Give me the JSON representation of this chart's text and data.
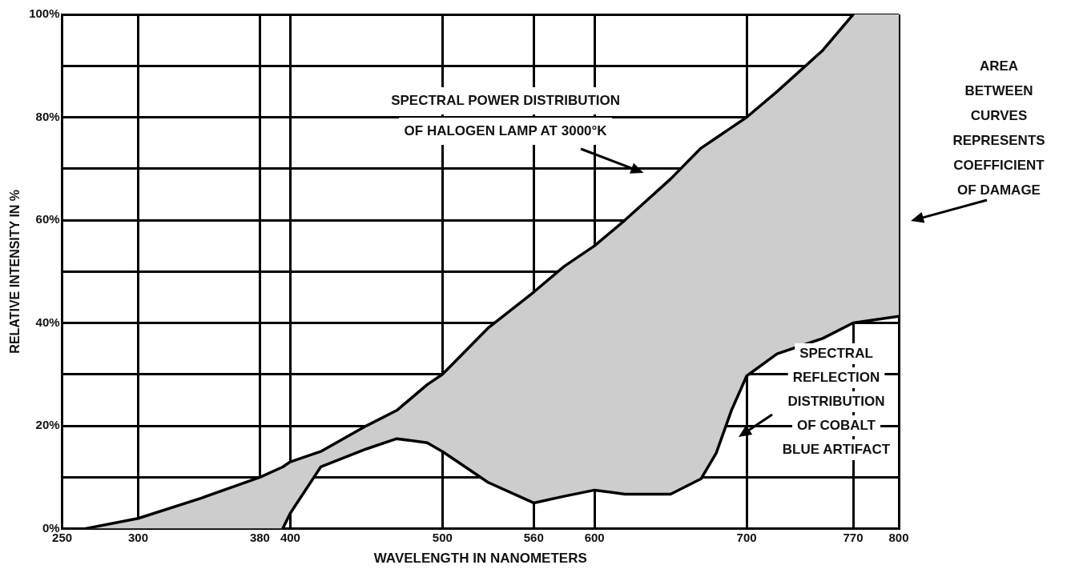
{
  "chart_data": {
    "type": "line",
    "xlabel": "WAVELENGTH IN NANOMETERS",
    "ylabel": "RELATIVE INTENSITY IN %",
    "x": [
      265,
      300,
      342,
      380,
      395,
      400,
      420,
      450,
      470,
      490,
      500,
      510,
      530,
      560,
      580,
      600,
      620,
      650,
      670,
      680,
      690,
      700,
      720,
      750,
      770,
      800
    ],
    "series": [
      {
        "type": "line",
        "color": "#000000",
        "values": [
          0,
          2,
          6,
          10,
          12,
          13,
          15,
          20,
          23,
          28,
          30,
          33,
          39,
          46,
          51,
          55,
          60,
          68,
          74,
          76,
          78,
          80,
          85,
          93,
          100,
          null
        ],
        "lower": [
          0,
          0,
          0,
          0,
          0,
          3,
          12,
          15.5,
          17.5,
          16.7,
          15,
          13,
          9,
          5,
          6.3,
          7.5,
          6.7,
          6.7,
          9.7,
          14.7,
          23,
          29.7,
          34,
          37,
          40,
          41.3
        ],
        "upper": [
          0,
          2,
          6,
          10,
          12,
          13,
          15,
          20,
          23,
          28,
          30,
          33,
          39,
          46,
          51,
          55,
          60,
          68,
          74,
          76,
          78,
          80,
          85,
          93,
          100,
          100
        ]
      },
      {
        "type": "line",
        "color": "#000000",
        "values": [
          null,
          null,
          null,
          null,
          0,
          3,
          12,
          15.5,
          17.5,
          16.7,
          15,
          13,
          9,
          5,
          6.3,
          7.5,
          6.7,
          6.7,
          9.7,
          14.7,
          23,
          29.7,
          34,
          37,
          40,
          41.3
        ]
      }
    ],
    "xlim": [
      250,
      800
    ],
    "xticks": [
      250,
      300,
      380,
      400,
      500,
      560,
      600,
      700,
      770,
      800
    ],
    "ylim": [
      0,
      100
    ],
    "yticks": [
      {
        "value": 0,
        "label": "0%"
      },
      {
        "value": 10,
        "label": null
      },
      {
        "value": 20,
        "label": "20%"
      },
      {
        "value": 30,
        "label": null
      },
      {
        "value": 40,
        "label": "40%"
      },
      {
        "value": 50,
        "label": null
      },
      {
        "value": 60,
        "label": "60%"
      },
      {
        "value": 70,
        "label": null
      },
      {
        "value": 80,
        "label": "80%"
      },
      {
        "value": 90,
        "label": null
      },
      {
        "value": 100,
        "label": "100%"
      }
    ],
    "grid": true,
    "legend": false,
    "marker": "none",
    "line_style": "solid",
    "annotations": [
      "SPECTRAL POWER DISTRIBUTION\nOF HALOGEN LAMP AT 3000°K",
      "AREA\nBETWEEN\nCURVES\nREPRESENTS\nCOEFFICIENT\nOF DAMAGE",
      "SPECTRAL\nREFLECTION\nDISTRIBUTION\nOF COBALT\nBLUE ARTIFACT"
    ]
  }
}
